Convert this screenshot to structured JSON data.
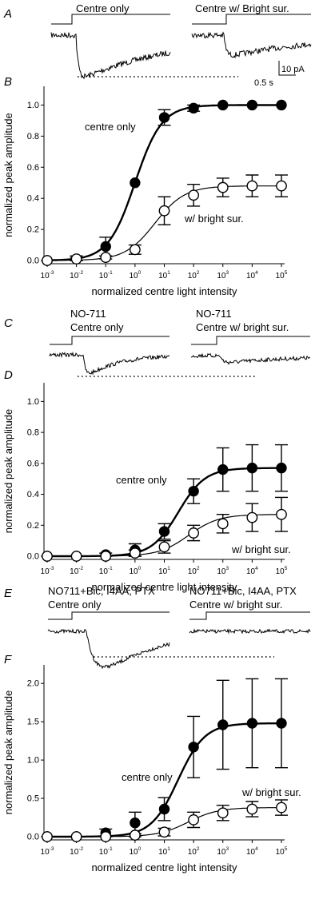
{
  "figure": {
    "scale_bar": {
      "y_label": "10 pA",
      "x_label": "0.5 s"
    },
    "panels": [
      {
        "id": "panel-a",
        "letter": "A",
        "kind": "traces",
        "labels": [
          [
            "Centre only"
          ],
          [
            "Centre w/ Bright sur."
          ]
        ]
      },
      {
        "id": "panel-b",
        "letter": "B",
        "kind": "plot",
        "chart_index": 0
      },
      {
        "id": "panel-c",
        "letter": "C",
        "kind": "traces",
        "labels": [
          [
            "NO-711",
            "Centre only"
          ],
          [
            "NO-711",
            "Centre w/ bright sur."
          ]
        ]
      },
      {
        "id": "panel-d",
        "letter": "D",
        "kind": "plot",
        "chart_index": 1
      },
      {
        "id": "panel-e",
        "letter": "E",
        "kind": "traces",
        "labels": [
          [
            "NO711+Bic, I4AA, PTX",
            "Centre only"
          ],
          [
            "NO711+Bic, I4AA, PTX",
            "Centre w/ bright sur."
          ]
        ]
      },
      {
        "id": "panel-f",
        "letter": "F",
        "kind": "plot",
        "chart_index": 2
      }
    ]
  },
  "chart_data": [
    {
      "type": "scatter",
      "panel": "B",
      "xlabel": "normalized centre light intensity",
      "ylabel": "normalized peak amplitude",
      "x_scale": "log",
      "x_tick_exponents": [
        -3,
        -2,
        -1,
        0,
        1,
        2,
        3,
        4,
        5
      ],
      "xlim": [
        0.001,
        100000
      ],
      "ylim": [
        0,
        1.1
      ],
      "y_ticks": [
        "0.0",
        "0.2",
        "0.4",
        "0.6",
        "0.8",
        "1.0"
      ],
      "series": [
        {
          "name": "centre only",
          "marker": "filled",
          "x": [
            0.001,
            0.01,
            0.1,
            1,
            10,
            100,
            1000,
            10000,
            100000
          ],
          "y": [
            0.0,
            0.01,
            0.09,
            0.5,
            0.92,
            0.98,
            1.0,
            1.0,
            1.0
          ],
          "err": [
            0.0,
            0.02,
            0.06,
            0.0,
            0.05,
            0.02,
            0.0,
            0.0,
            0.0
          ]
        },
        {
          "name": "w/ bright sur.",
          "marker": "open",
          "x": [
            0.001,
            0.01,
            0.1,
            1,
            10,
            100,
            1000,
            10000,
            100000
          ],
          "y": [
            0.0,
            0.01,
            0.02,
            0.07,
            0.32,
            0.42,
            0.47,
            0.48,
            0.48
          ],
          "err": [
            0.0,
            0.01,
            0.01,
            0.03,
            0.09,
            0.07,
            0.06,
            0.07,
            0.07
          ]
        }
      ]
    },
    {
      "type": "scatter",
      "panel": "D",
      "xlabel": "normalized centre light intensity",
      "ylabel": "normalized peak amplitude",
      "x_scale": "log",
      "x_tick_exponents": [
        -3,
        -2,
        -1,
        0,
        1,
        2,
        3,
        4,
        5
      ],
      "xlim": [
        0.001,
        100000
      ],
      "ylim": [
        0,
        1.1
      ],
      "y_ticks": [
        "0.0",
        "0.2",
        "0.4",
        "0.6",
        "0.8",
        "1.0"
      ],
      "series": [
        {
          "name": "centre only",
          "marker": "filled",
          "x": [
            0.001,
            0.01,
            0.1,
            1,
            10,
            100,
            1000,
            10000,
            100000
          ],
          "y": [
            0.0,
            0.0,
            0.01,
            0.04,
            0.16,
            0.42,
            0.56,
            0.57,
            0.57
          ],
          "err": [
            0.0,
            0.0,
            0.01,
            0.04,
            0.05,
            0.08,
            0.14,
            0.15,
            0.15
          ]
        },
        {
          "name": "w/ bright sur.",
          "marker": "open",
          "x": [
            0.001,
            0.01,
            0.1,
            1,
            10,
            100,
            1000,
            10000,
            100000
          ],
          "y": [
            0.0,
            0.0,
            0.0,
            0.02,
            0.06,
            0.15,
            0.21,
            0.25,
            0.27
          ],
          "err": [
            0.0,
            0.0,
            0.0,
            0.02,
            0.04,
            0.05,
            0.06,
            0.09,
            0.11
          ]
        }
      ]
    },
    {
      "type": "scatter",
      "panel": "F",
      "xlabel": "normalized centre light intensity",
      "ylabel": "normalized peak amplitude",
      "x_scale": "log",
      "x_tick_exponents": [
        -3,
        -2,
        -1,
        0,
        1,
        2,
        3,
        4,
        5
      ],
      "xlim": [
        0.001,
        100000
      ],
      "ylim": [
        0,
        2.2
      ],
      "y_ticks": [
        "0.0",
        "0.5",
        "1.0",
        "1.5",
        "2.0"
      ],
      "series": [
        {
          "name": "centre only",
          "marker": "filled",
          "x": [
            0.001,
            0.01,
            0.1,
            1,
            10,
            100,
            1000,
            10000,
            100000
          ],
          "y": [
            0.0,
            0.0,
            0.05,
            0.18,
            0.36,
            1.17,
            1.46,
            1.48,
            1.48
          ],
          "err": [
            0.0,
            0.0,
            0.05,
            0.14,
            0.15,
            0.4,
            0.58,
            0.58,
            0.58
          ]
        },
        {
          "name": "w/ bright sur.",
          "marker": "open",
          "x": [
            0.001,
            0.01,
            0.1,
            1,
            10,
            100,
            1000,
            10000,
            100000
          ],
          "y": [
            0.0,
            0.0,
            0.0,
            0.02,
            0.06,
            0.22,
            0.31,
            0.36,
            0.38
          ],
          "err": [
            0.0,
            0.0,
            0.0,
            0.02,
            0.05,
            0.1,
            0.1,
            0.1,
            0.1
          ]
        }
      ]
    }
  ]
}
